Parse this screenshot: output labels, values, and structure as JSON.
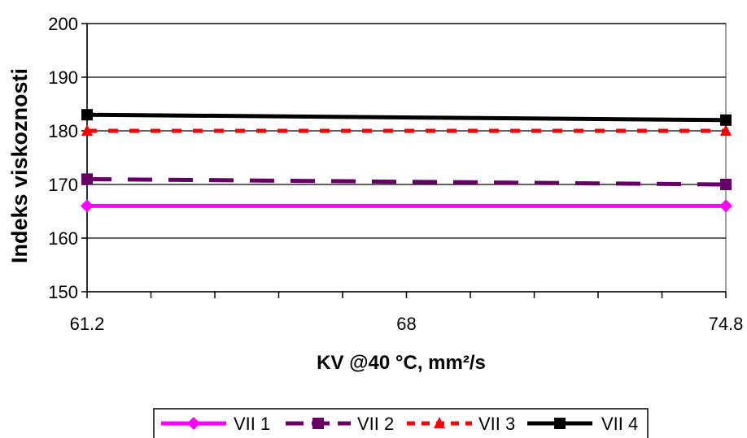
{
  "chart_data": {
    "type": "line",
    "title": "",
    "xlabel": "KV @40 °C, mm²/s",
    "ylabel": "Indeks viskoznosti",
    "x": [
      61.2,
      74.8
    ],
    "xlim": [
      61.2,
      74.8
    ],
    "x_ticks": [
      "61.2",
      "68",
      "74.8"
    ],
    "ylim": [
      150,
      200
    ],
    "y_ticks": [
      "150",
      "160",
      "170",
      "180",
      "190",
      "200"
    ],
    "grid": "horizontal major",
    "legend_position": "bottom",
    "series": [
      {
        "name": "VII 1",
        "values": [
          166,
          166
        ],
        "color": "#ff00ff",
        "line_style": "solid",
        "marker": "diamond"
      },
      {
        "name": "VII 2",
        "values": [
          171,
          170
        ],
        "color": "#660066",
        "line_style": "long-dash",
        "marker": "square"
      },
      {
        "name": "VII 3",
        "values": [
          180,
          180
        ],
        "color": "#ff0000",
        "line_style": "short-dash",
        "marker": "triangle"
      },
      {
        "name": "VII 4",
        "values": [
          183,
          182
        ],
        "color": "#000000",
        "line_style": "solid",
        "marker": "square"
      }
    ]
  }
}
